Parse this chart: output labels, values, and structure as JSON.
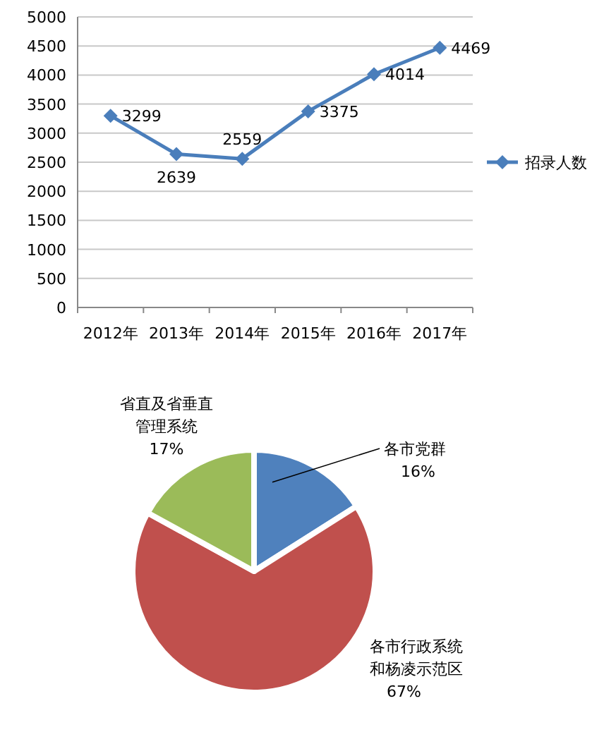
{
  "chart_data": [
    {
      "type": "line",
      "categories": [
        "2012年",
        "2013年",
        "2014年",
        "2015年",
        "2016年",
        "2017年"
      ],
      "series": [
        {
          "name": "招录人数",
          "color": "#4a7ebb",
          "values": [
            3299,
            2639,
            2559,
            3375,
            4014,
            4469
          ]
        }
      ],
      "ylim": [
        0,
        5000
      ],
      "yticks": [
        0,
        500,
        1000,
        1500,
        2000,
        2500,
        3000,
        3500,
        4000,
        4500,
        5000
      ],
      "grid": "y",
      "legend": "right",
      "marker": "diamond",
      "data_labels": true
    },
    {
      "type": "pie",
      "categories": [
        "各市党群",
        "各市行政系统和杨凌示范区",
        "省直及省垂直管理系统"
      ],
      "values": [
        16,
        67,
        17
      ],
      "colors": [
        "#4f81bd",
        "#c0504d",
        "#9bbb59"
      ],
      "value_labels": [
        "16%",
        "67%",
        "17%"
      ]
    }
  ]
}
